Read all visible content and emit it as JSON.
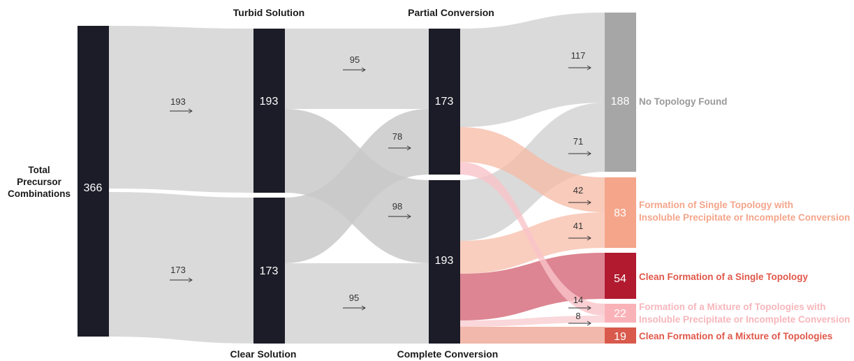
{
  "headers": {
    "turbid": "Turbid Solution",
    "partial": "Partial Conversion",
    "clear": "Clear Solution",
    "complete": "Complete Conversion"
  },
  "left_label": [
    "Total",
    "Precursor",
    "Combinations"
  ],
  "nodes": {
    "total": "366",
    "turbid": "193",
    "clear": "173",
    "partial": "173",
    "complete": "193",
    "no_topology": "188",
    "single_insoluble": "83",
    "clean_single": "54",
    "mixture_insoluble": "22",
    "clean_mixture": "19"
  },
  "flows": {
    "total_to_turbid": "193",
    "total_to_clear": "173",
    "turbid_to_partial": "95",
    "turbid_to_complete": "98",
    "clear_to_partial": "78",
    "clear_to_complete": "95",
    "partial_to_none": "117",
    "complete_to_none": "71",
    "partial_to_single_insoluble": "42",
    "complete_to_single_insoluble": "41",
    "partial_to_mixture_insoluble": "14",
    "complete_to_mixture_insoluble": "8"
  },
  "outcomes": {
    "no_topology": [
      "No Topology Found"
    ],
    "single_insoluble": [
      "Formation of Single Topology with",
      "Insoluble Precipitate or Incomplete Conversion"
    ],
    "clean_single": [
      "Clean Formation of a Single Topology"
    ],
    "mixture_insoluble": [
      "Formation of a Mixture of Topologies with",
      "Insoluble Precipitate or Incomplete Conversion"
    ],
    "clean_mixture": [
      "Clean Formation of a Mixture of  Topologies"
    ]
  },
  "colors": {
    "node_dark": "#1b1c27",
    "flow_gray": "#d9d9d9",
    "flow_dark_gray": "#b9b9b9",
    "no_topology": "#a6a6a6",
    "single_insoluble": "#f4a58a",
    "clean_single": "#b11a2f",
    "mixture_insoluble": "#f9b3b8",
    "clean_mixture": "#d9594c",
    "flow_salmon": "#f8c6b4",
    "flow_rose": "#d97585",
    "flow_pink": "#fad3d6",
    "flow_peach": "#efb0a2",
    "label_gray": "#999999",
    "label_salmon": "#f4a58a",
    "label_red": "#e0584a",
    "label_pink": "#f7b6bb"
  }
}
